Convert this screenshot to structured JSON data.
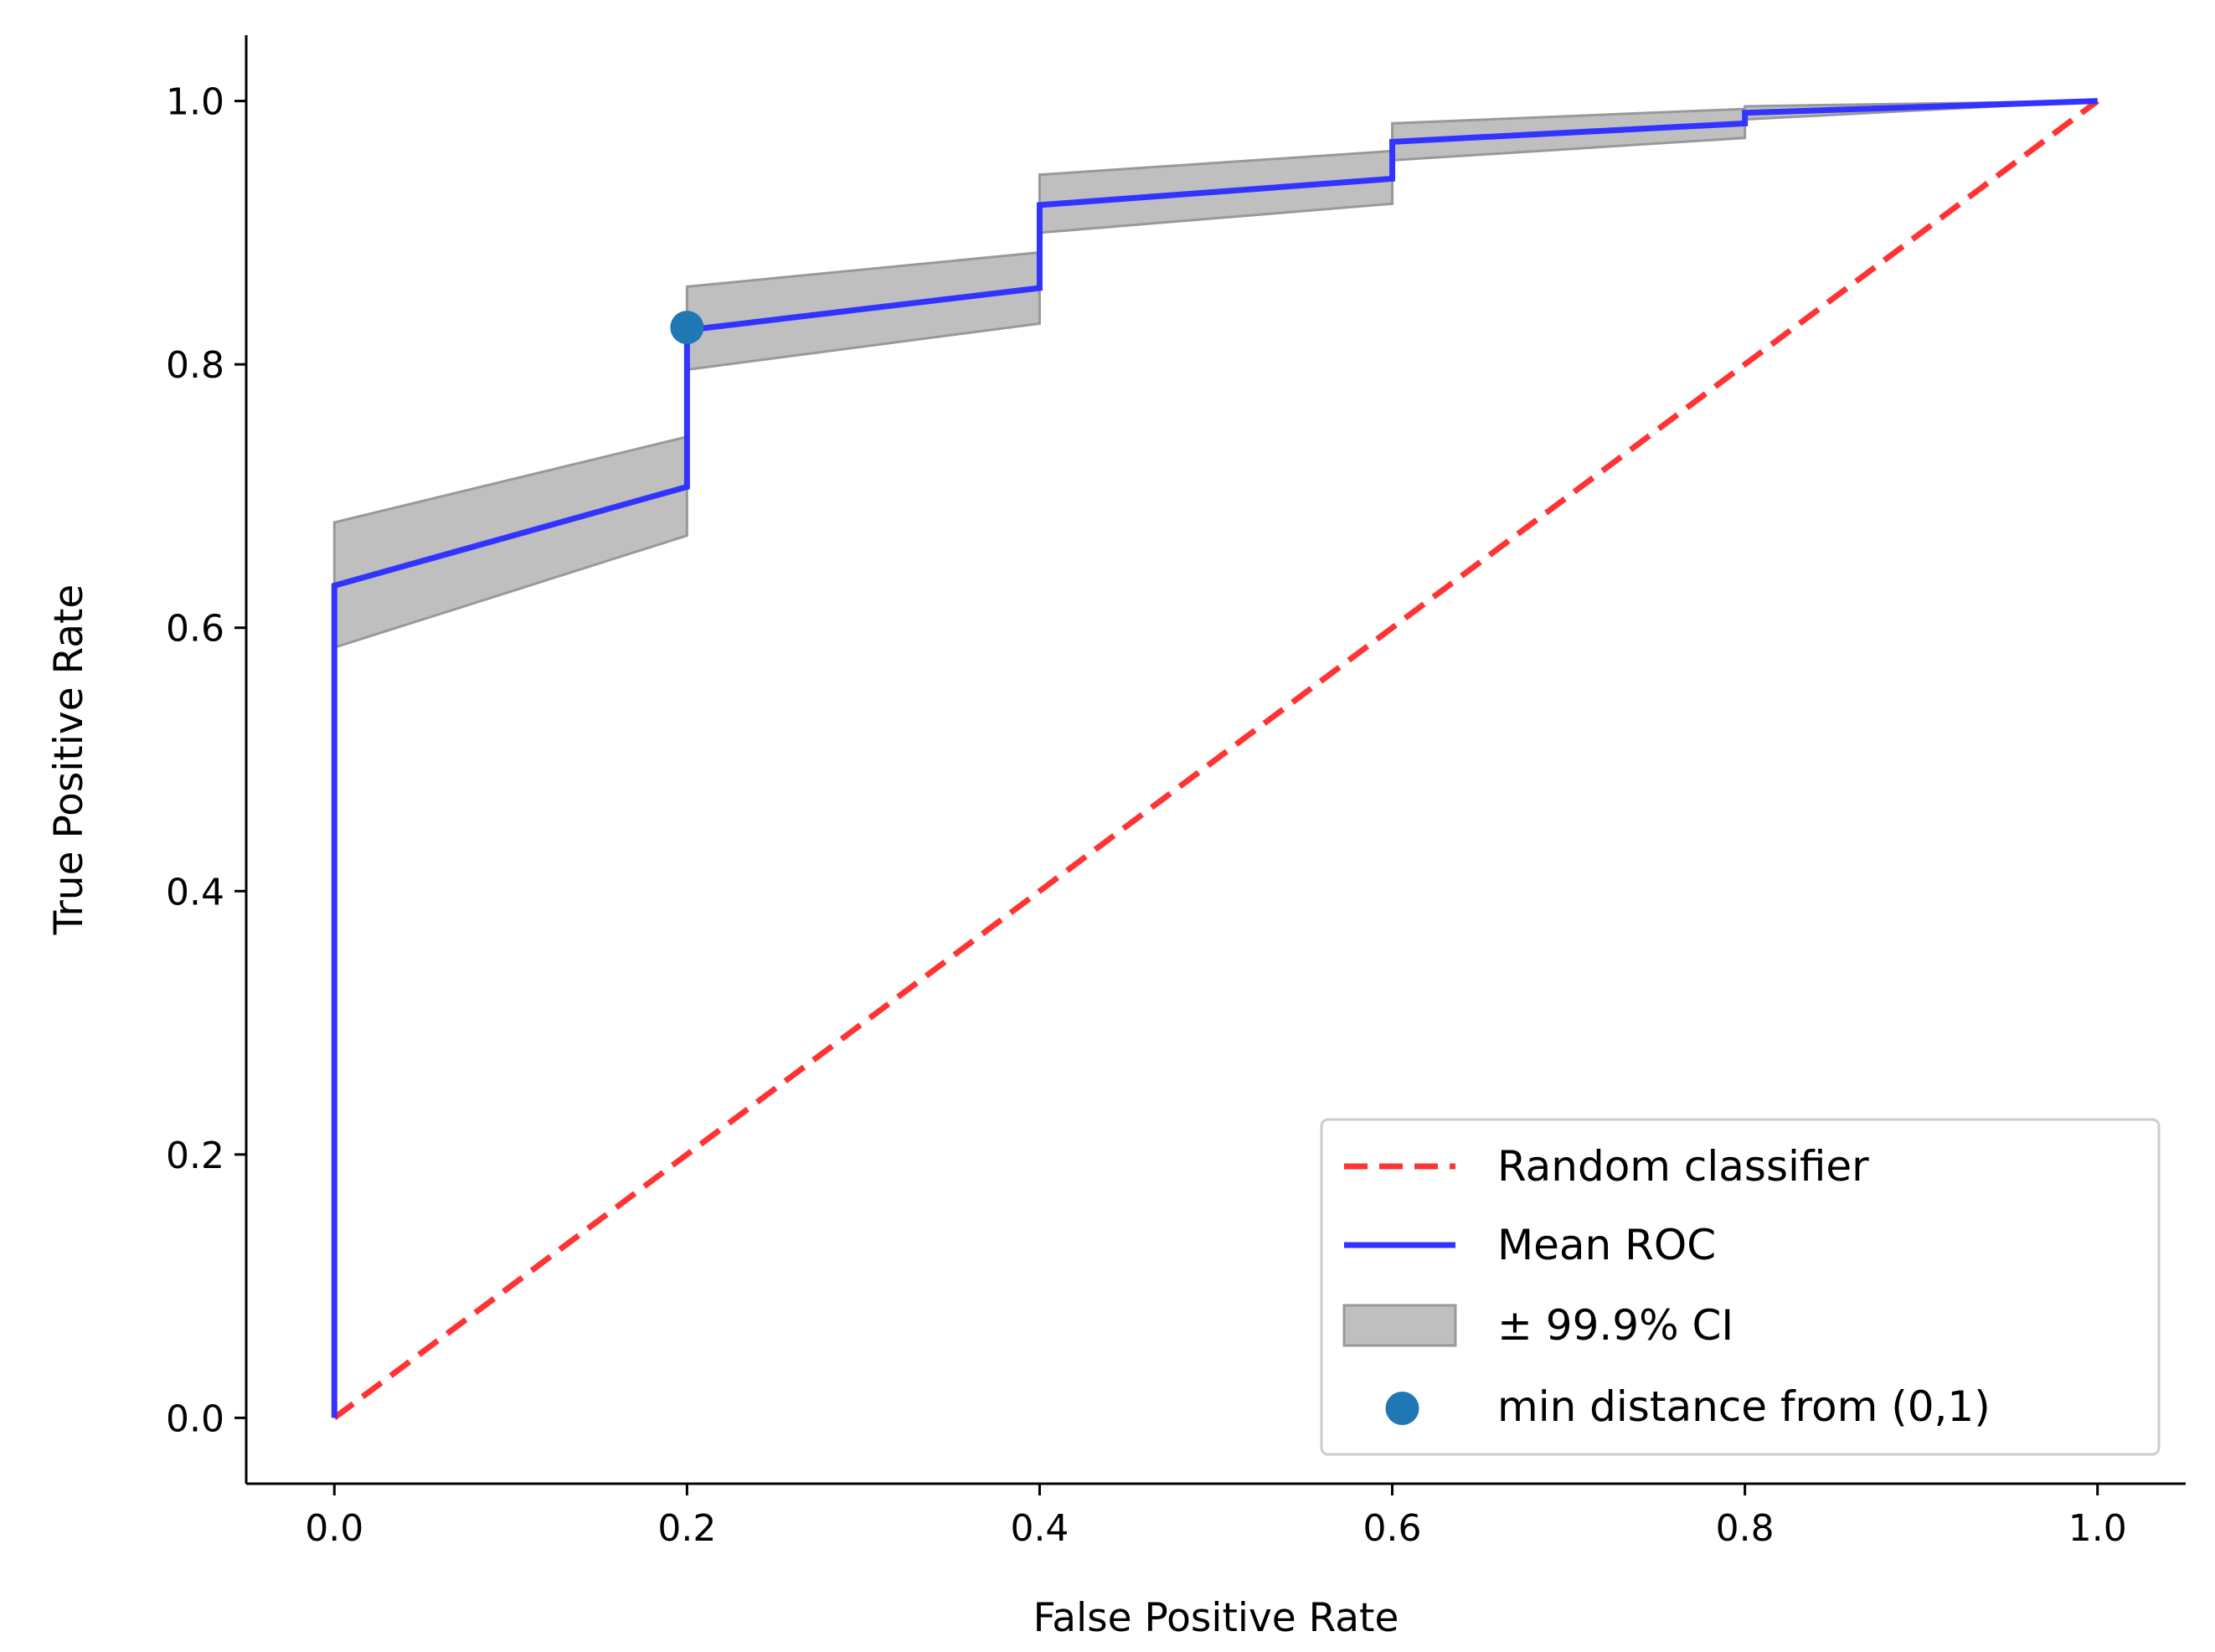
{
  "chart_data": {
    "type": "line",
    "title": "",
    "xlabel": "False Positive Rate",
    "ylabel": "True Positive Rate",
    "xlim": [
      -0.05,
      1.05
    ],
    "ylim": [
      -0.05,
      1.05
    ],
    "xticks": [
      0.0,
      0.2,
      0.4,
      0.6,
      0.8,
      1.0
    ],
    "xtick_labels": [
      "0.0",
      "0.2",
      "0.4",
      "0.6",
      "0.8",
      "1.0"
    ],
    "yticks": [
      0.0,
      0.2,
      0.4,
      0.6,
      0.8,
      1.0
    ],
    "ytick_labels": [
      "0.0",
      "0.2",
      "0.4",
      "0.6",
      "0.8",
      "1.0"
    ],
    "grid": false,
    "legend_position": "bottom-right",
    "series": [
      {
        "name": "Random classifier",
        "kind": "line",
        "style": "dashed",
        "color": "#ff3333",
        "x": [
          0.0,
          1.0
        ],
        "y": [
          0.0,
          1.0
        ]
      },
      {
        "name": "Mean ROC",
        "kind": "line",
        "style": "solid",
        "color": "#3333ff",
        "x": [
          0.0,
          0.0,
          0.2,
          0.2,
          0.4,
          0.4,
          0.6,
          0.6,
          0.8,
          0.8,
          1.0
        ],
        "y": [
          0.0,
          0.632,
          0.707,
          0.826,
          0.858,
          0.921,
          0.941,
          0.969,
          0.983,
          0.991,
          1.0
        ]
      },
      {
        "name": "± 99.9% CI",
        "kind": "band",
        "color": "#bfbfbf",
        "edge_color": "#999999",
        "x": [
          0.0,
          0.0,
          0.2,
          0.2,
          0.4,
          0.4,
          0.6,
          0.6,
          0.8,
          0.8,
          1.0
        ],
        "upper": [
          0.0,
          0.68,
          0.745,
          0.859,
          0.885,
          0.944,
          0.962,
          0.983,
          0.994,
          0.996,
          1.0
        ],
        "lower": [
          0.0,
          0.585,
          0.67,
          0.796,
          0.831,
          0.9,
          0.922,
          0.955,
          0.972,
          0.986,
          1.0
        ]
      },
      {
        "name": "min distance from (0,1)",
        "kind": "scatter",
        "color": "#1f77b4",
        "x": [
          0.2
        ],
        "y": [
          0.828
        ]
      }
    ]
  }
}
